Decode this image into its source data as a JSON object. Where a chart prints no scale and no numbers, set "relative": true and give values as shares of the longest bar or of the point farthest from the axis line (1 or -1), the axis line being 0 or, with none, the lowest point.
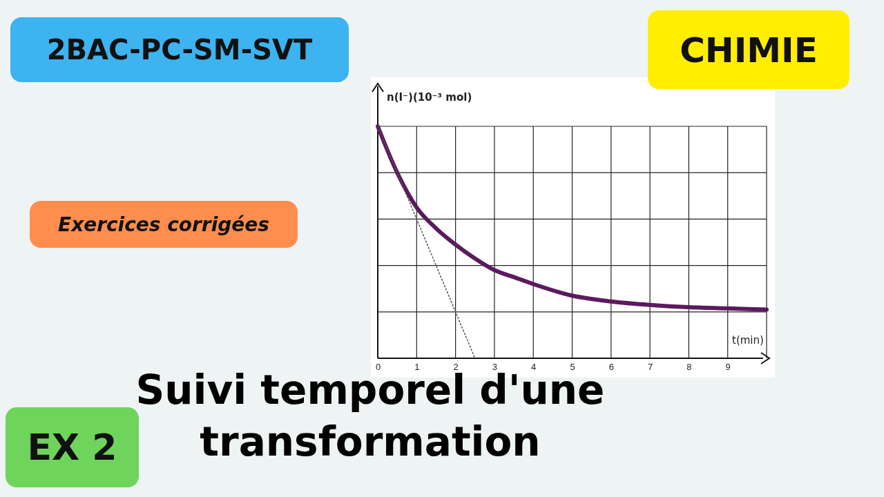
{
  "chart_data": {
    "type": "line",
    "title": "Suivi temporel d'une transformation",
    "xlabel": "t(min)",
    "ylabel": "n(I⁻)(10⁻³ mol)",
    "relative": true,
    "x": [
      0,
      0.5,
      1,
      1.5,
      2,
      2.5,
      3,
      3.5,
      4,
      5,
      6,
      7,
      8,
      9,
      10
    ],
    "xlim": [
      0,
      10
    ],
    "xticks": [
      0,
      1,
      2,
      3,
      4,
      5,
      6,
      7,
      8,
      9
    ],
    "grid": true,
    "marker": "none",
    "series": [
      {
        "color": "#5b1a5e",
        "values": [
          1,
          0.8,
          0.65,
          0.56,
          0.49,
          0.43,
          0.38,
          0.35,
          0.32,
          0.27,
          0.245,
          0.23,
          0.22,
          0.215,
          0.21
        ]
      },
      {
        "color": "#555555",
        "line_style": "dotted",
        "x": [
          0,
          2.5
        ],
        "values": [
          1,
          0
        ]
      }
    ],
    "annotations": [
      "2BAC-PC-SM-SVT",
      "CHIMIE",
      "Exercices corrigées",
      "EX 2"
    ]
  }
}
